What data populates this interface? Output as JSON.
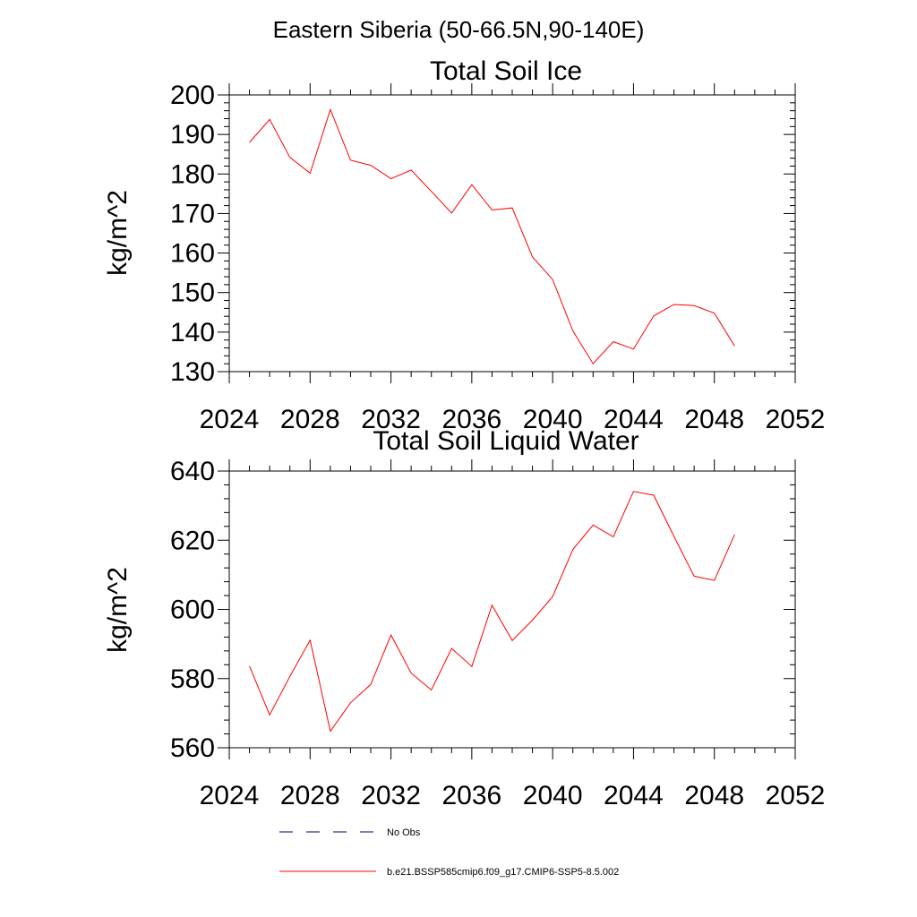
{
  "page_title": "Eastern Siberia (50-66.5N,90-140E)",
  "legend": {
    "entries": [
      {
        "label": "No Obs",
        "color": "#000080",
        "style": "dashed"
      },
      {
        "label": "b.e21.BSSP585cmip6.f09_g17.CMIP6-SSP5-8.5.002",
        "color": "#ff0000",
        "style": "solid"
      }
    ]
  },
  "chart_data": [
    {
      "type": "line",
      "title": "Total Soil Ice",
      "xlabel": "",
      "ylabel": "kg/m^2",
      "xlim": [
        2024,
        2052
      ],
      "ylim": [
        130,
        200
      ],
      "xticks": [
        2024,
        2028,
        2032,
        2036,
        2040,
        2044,
        2048,
        2052
      ],
      "xtick_labels": [
        "2024",
        "2028",
        "2032",
        "2036",
        "2040",
        "2044",
        "2048",
        "2052"
      ],
      "yticks": [
        130,
        140,
        150,
        160,
        170,
        180,
        190,
        200
      ],
      "ytick_labels": [
        "130",
        "140",
        "150",
        "160",
        "170",
        "180",
        "190",
        "200"
      ],
      "grid": false,
      "series": [
        {
          "color": "#ff0000",
          "x": [
            2025,
            2026,
            2027,
            2028,
            2029,
            2030,
            2031,
            2032,
            2033,
            2034,
            2035,
            2036,
            2037,
            2038,
            2039,
            2040,
            2041,
            2042,
            2043,
            2044,
            2045,
            2046,
            2047,
            2048,
            2049
          ],
          "y": [
            188.0,
            193.8,
            184.2,
            180.2,
            196.3,
            183.5,
            182.2,
            178.8,
            181.0,
            175.6,
            170.1,
            177.3,
            170.9,
            171.4,
            159.0,
            153.3,
            140.3,
            132.0,
            137.6,
            135.7,
            144.1,
            147.0,
            146.7,
            144.8,
            136.5
          ]
        }
      ]
    },
    {
      "type": "line",
      "title": "Total Soil Liquid Water",
      "xlabel": "",
      "ylabel": "kg/m^2",
      "xlim": [
        2024,
        2052
      ],
      "ylim": [
        560,
        640
      ],
      "xticks": [
        2024,
        2028,
        2032,
        2036,
        2040,
        2044,
        2048,
        2052
      ],
      "xtick_labels": [
        "2024",
        "2028",
        "2032",
        "2036",
        "2040",
        "2044",
        "2048",
        "2052"
      ],
      "yticks": [
        560,
        580,
        600,
        620,
        640
      ],
      "ytick_labels": [
        "560",
        "580",
        "600",
        "620",
        "640"
      ],
      "grid": false,
      "series": [
        {
          "color": "#ff0000",
          "x": [
            2025,
            2026,
            2027,
            2028,
            2029,
            2030,
            2031,
            2032,
            2033,
            2034,
            2035,
            2036,
            2037,
            2038,
            2039,
            2040,
            2041,
            2042,
            2043,
            2044,
            2045,
            2046,
            2047,
            2048,
            2049
          ],
          "y": [
            583.6,
            569.5,
            580.6,
            591.1,
            564.8,
            573.0,
            578.3,
            592.6,
            581.6,
            576.7,
            588.7,
            583.5,
            601.2,
            591.0,
            596.9,
            603.7,
            617.3,
            624.4,
            621.0,
            634.1,
            633.0,
            621.1,
            609.6,
            608.4,
            621.6
          ]
        }
      ]
    }
  ]
}
